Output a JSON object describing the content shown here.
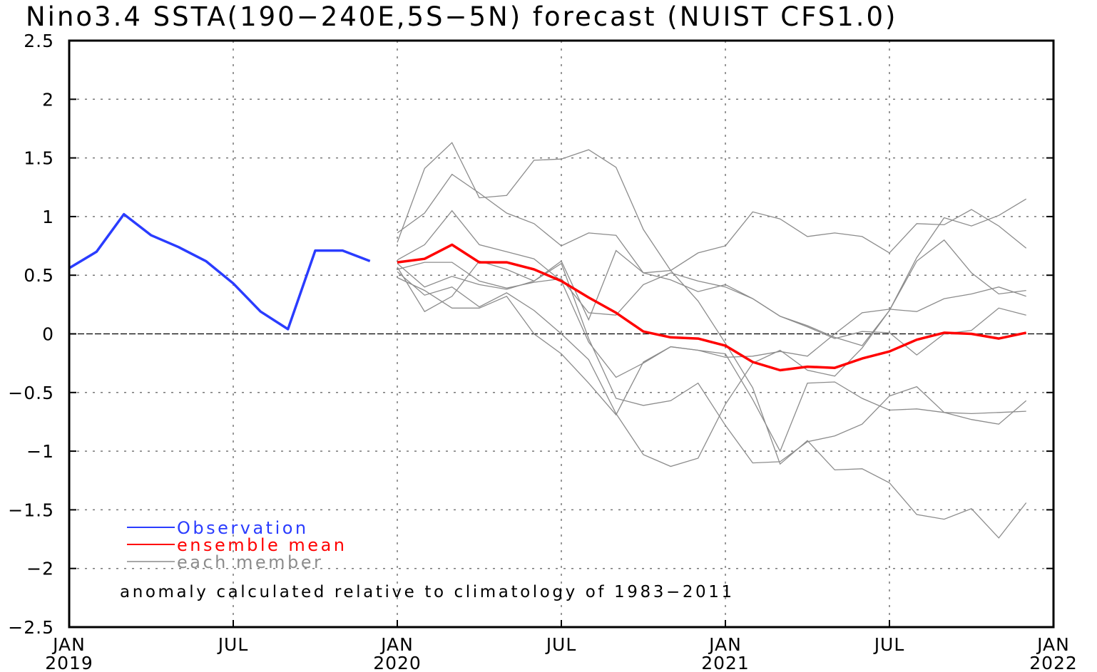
{
  "chart_data": {
    "type": "line",
    "title": "Nino3.4 SSTA(190−240E,5S−5N) forecast (NUIST CFS1.0)",
    "xlabel": "",
    "ylabel": "",
    "xlim": [
      "2019-01",
      "2022-01"
    ],
    "ylim": [
      -2.5,
      2.5
    ],
    "grid": true,
    "legend_position": "bottom-left",
    "y_ticks": [
      2.5,
      2,
      1.5,
      1,
      0.5,
      0,
      -0.5,
      -1,
      -1.5,
      -2,
      -2.5
    ],
    "y_tick_labels": [
      "2.5",
      "2",
      "1.5",
      "1",
      "0.5",
      "0",
      "−0.5",
      "−1",
      "−1.5",
      "−2",
      "−2.5"
    ],
    "x_ticks": [
      {
        "date": "2019-01",
        "month": "JAN",
        "year": "2019"
      },
      {
        "date": "2019-07",
        "month": "JUL",
        "year": ""
      },
      {
        "date": "2020-01",
        "month": "JAN",
        "year": "2020"
      },
      {
        "date": "2020-07",
        "month": "JUL",
        "year": ""
      },
      {
        "date": "2021-01",
        "month": "JAN",
        "year": "2021"
      },
      {
        "date": "2021-07",
        "month": "JUL",
        "year": ""
      },
      {
        "date": "2022-01",
        "month": "JAN",
        "year": "2022"
      }
    ],
    "annotation": "anomaly calculated relative to climatology of 1983−2011",
    "series": [
      {
        "name": "Observation",
        "color": "#2a3cff",
        "role": "observation",
        "start": "2019-01",
        "values": [
          0.56,
          0.7,
          1.02,
          0.84,
          0.74,
          0.62,
          0.43,
          0.19,
          0.04,
          0.71,
          0.71,
          0.62
        ]
      },
      {
        "name": "ensemble mean",
        "color": "#ff0000",
        "role": "mean",
        "start": "2020-01",
        "values": [
          0.61,
          0.64,
          0.76,
          0.61,
          0.61,
          0.55,
          0.45,
          0.31,
          0.18,
          0.02,
          -0.03,
          -0.04,
          -0.1,
          -0.24,
          -0.31,
          -0.28,
          -0.29,
          -0.21,
          -0.15,
          -0.05,
          0.01,
          0.0,
          -0.04,
          0.01
        ]
      },
      {
        "name": "each member",
        "color": "#8c8c8c",
        "role": "members",
        "start": "2020-01",
        "members": [
          [
            0.78,
            1.41,
            1.63,
            1.16,
            1.18,
            1.48,
            1.49,
            1.57,
            1.42,
            0.89,
            0.54,
            0.69,
            0.75,
            1.04,
            0.98,
            0.83,
            0.86,
            0.83,
            0.69,
            0.94,
            0.93,
            1.06,
            0.92,
            0.73
          ],
          [
            0.86,
            1.03,
            1.36,
            1.2,
            1.03,
            0.94,
            0.75,
            0.86,
            0.84,
            0.52,
            0.46,
            0.36,
            0.42,
            0.3,
            0.15,
            0.06,
            -0.04,
            0.02,
            0.01,
            -0.18,
            0.0,
            0.03,
            0.22,
            0.16
          ],
          [
            0.63,
            0.76,
            1.05,
            0.76,
            0.7,
            0.64,
            0.45,
            -0.07,
            -0.37,
            -0.25,
            -0.11,
            -0.14,
            -0.2,
            -0.19,
            -0.15,
            -0.19,
            0.0,
            0.18,
            0.21,
            0.19,
            0.3,
            0.34,
            0.4,
            0.32
          ],
          [
            0.55,
            0.61,
            0.61,
            0.45,
            0.39,
            0.44,
            0.47,
            0.18,
            0.16,
            0.42,
            0.52,
            0.45,
            0.4,
            0.3,
            0.15,
            0.07,
            -0.03,
            -0.1,
            0.2,
            0.62,
            0.8,
            0.52,
            0.34,
            0.37
          ],
          [
            0.57,
            0.19,
            0.32,
            0.62,
            0.55,
            0.45,
            0.62,
            0.12,
            0.71,
            0.52,
            0.54,
            0.28,
            -0.08,
            -0.46,
            -1.11,
            -0.91,
            -1.16,
            -1.15,
            -1.27,
            -1.54,
            -1.58,
            -1.49,
            -1.74,
            -1.44
          ],
          [
            0.6,
            0.4,
            0.49,
            0.42,
            0.38,
            0.45,
            0.6,
            -0.04,
            -0.55,
            -0.61,
            -0.57,
            -0.42,
            -0.78,
            -1.1,
            -1.09,
            -0.92,
            -0.87,
            -0.77,
            -0.53,
            -0.45,
            -0.67,
            -0.73,
            -0.77,
            -0.57
          ],
          [
            0.53,
            0.33,
            0.4,
            0.23,
            0.35,
            0.2,
            0.0,
            -0.22,
            -0.68,
            -1.03,
            -1.13,
            -1.06,
            -0.6,
            -0.25,
            -0.14,
            -0.31,
            -0.36,
            -0.12,
            0.2,
            0.65,
            0.99,
            0.92,
            1.01,
            1.15
          ],
          [
            0.48,
            0.37,
            0.22,
            0.22,
            0.32,
            0.0,
            -0.17,
            -0.42,
            -0.69,
            -0.24,
            -0.11,
            -0.14,
            -0.17,
            -0.56,
            -1.0,
            -0.42,
            -0.41,
            -0.55,
            -0.65,
            -0.64,
            -0.67,
            -0.68,
            -0.67,
            -0.66
          ]
        ]
      }
    ]
  }
}
